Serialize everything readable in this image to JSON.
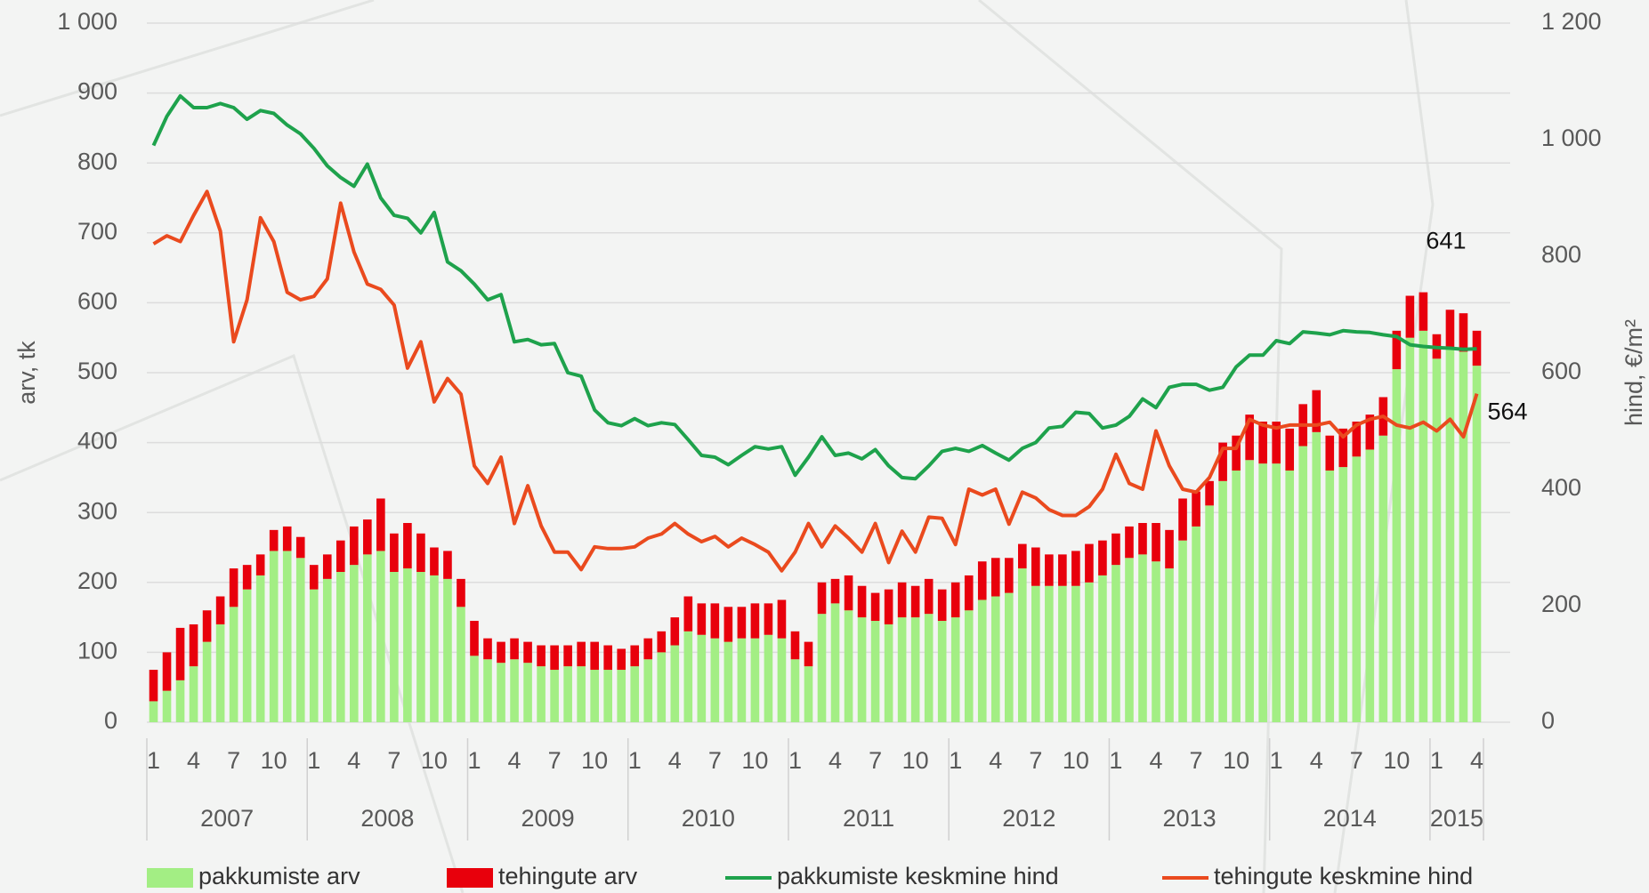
{
  "chart_data": {
    "type": "bar",
    "y_label": "arv, tk",
    "y2_label": "hind, €/m²",
    "categories": [
      "1",
      null,
      null,
      "4",
      null,
      null,
      "7",
      null,
      null,
      "10",
      null,
      null,
      "1",
      null,
      null,
      "4",
      null,
      null,
      "7",
      null,
      null,
      "10",
      null,
      null,
      "1",
      null,
      null,
      "4",
      null,
      null,
      "7",
      null,
      null,
      "10",
      null,
      null,
      "1",
      null,
      null,
      "4",
      null,
      null,
      "7",
      null,
      null,
      "10",
      null,
      null,
      "1",
      null,
      null,
      "4",
      null,
      null,
      "7",
      null,
      null,
      "10",
      null,
      null,
      "1",
      null,
      null,
      "4",
      null,
      null,
      "7",
      null,
      null,
      "10",
      null,
      null,
      "1",
      null,
      null,
      "4",
      null,
      null,
      "7",
      null,
      null,
      "10",
      null,
      null,
      "1",
      null,
      null,
      "4",
      null,
      null,
      "7",
      null,
      null,
      "10",
      null,
      null,
      "1",
      null,
      null,
      "4"
    ],
    "years": [
      "2007",
      "2008",
      "2009",
      "2010",
      "2011",
      "2012",
      "2013",
      "2014",
      "2015"
    ],
    "ylim": [
      0,
      1000
    ],
    "yticks": [
      0,
      100,
      200,
      300,
      400,
      500,
      600,
      700,
      800,
      900,
      {
        "value": 1000,
        "label": "1 000"
      }
    ],
    "y2lim": [
      0,
      1200
    ],
    "y2ticks": [
      0,
      200,
      400,
      600,
      800,
      {
        "value": 1000,
        "label": "1 000"
      },
      {
        "value": 1200,
        "label": "1 200"
      }
    ],
    "grid": true,
    "stacked": true,
    "legend": "bottom",
    "series": [
      {
        "name": "pakkumiste arv",
        "type": "bar",
        "color": "#a3ee84",
        "values": [
          30,
          45,
          60,
          80,
          115,
          140,
          165,
          190,
          210,
          245,
          245,
          235,
          190,
          205,
          215,
          225,
          240,
          245,
          215,
          220,
          215,
          210,
          205,
          165,
          95,
          90,
          85,
          90,
          85,
          80,
          75,
          80,
          80,
          75,
          75,
          75,
          80,
          90,
          100,
          110,
          130,
          125,
          120,
          115,
          120,
          120,
          125,
          120,
          90,
          80,
          155,
          170,
          160,
          150,
          145,
          140,
          150,
          150,
          155,
          145,
          150,
          160,
          175,
          180,
          185,
          220,
          195,
          195,
          195,
          195,
          200,
          210,
          225,
          235,
          240,
          230,
          220,
          260,
          280,
          310,
          345,
          360,
          375,
          370,
          370,
          360,
          395,
          415,
          360,
          365,
          380,
          390,
          410,
          505,
          550,
          560,
          520,
          535,
          530,
          510
        ]
      },
      {
        "name": "tehingute arv",
        "type": "bar",
        "color": "#e8000c",
        "values": [
          45,
          55,
          75,
          60,
          45,
          40,
          55,
          35,
          30,
          30,
          35,
          30,
          35,
          35,
          45,
          55,
          50,
          75,
          55,
          65,
          55,
          40,
          40,
          40,
          50,
          30,
          30,
          30,
          30,
          30,
          35,
          30,
          35,
          40,
          35,
          30,
          30,
          30,
          30,
          40,
          50,
          45,
          50,
          50,
          45,
          50,
          45,
          55,
          40,
          35,
          45,
          35,
          50,
          45,
          40,
          50,
          50,
          45,
          50,
          45,
          50,
          50,
          55,
          55,
          50,
          35,
          55,
          45,
          45,
          50,
          55,
          50,
          45,
          45,
          45,
          55,
          55,
          60,
          50,
          35,
          55,
          50,
          65,
          60,
          60,
          60,
          60,
          60,
          50,
          55,
          50,
          50,
          55,
          55,
          60,
          55,
          35,
          55,
          55,
          50
        ]
      },
      {
        "name": "pakkumiste keskmine hind",
        "type": "line",
        "axis": "y2",
        "color": "#1ea24c",
        "end_label": "641",
        "values": [
          990,
          1040,
          1075,
          1055,
          1055,
          1062,
          1055,
          1035,
          1050,
          1045,
          1025,
          1010,
          985,
          955,
          935,
          920,
          958,
          900,
          870,
          865,
          840,
          875,
          790,
          775,
          752,
          725,
          734,
          653,
          657,
          648,
          650,
          600,
          594,
          536,
          514,
          509,
          521,
          509,
          514,
          511,
          485,
          458,
          455,
          442,
          458,
          473,
          469,
          473,
          424,
          455,
          490,
          458,
          462,
          452,
          468,
          440,
          420,
          418,
          440,
          465,
          470,
          465,
          475,
          462,
          450,
          470,
          480,
          505,
          508,
          532,
          530,
          505,
          510,
          525,
          555,
          540,
          575,
          580,
          580,
          570,
          575,
          610,
          630,
          630,
          655,
          650,
          670,
          668,
          665,
          672,
          670,
          669,
          665,
          662,
          648,
          645,
          643,
          642,
          640,
          641
        ]
      },
      {
        "name": "tehingute keskmine hind",
        "type": "line",
        "axis": "y2",
        "color": "#ea4a1e",
        "end_label": "564",
        "values": [
          821,
          835,
          825,
          870,
          911,
          843,
          653,
          725,
          866,
          825,
          738,
          725,
          731,
          761,
          891,
          807,
          752,
          743,
          716,
          608,
          653,
          550,
          590,
          563,
          440,
          410,
          455,
          341,
          406,
          337,
          292,
          292,
          262,
          301,
          298,
          298,
          301,
          316,
          323,
          341,
          323,
          310,
          319,
          301,
          316,
          305,
          292,
          260,
          292,
          341,
          301,
          337,
          316,
          292,
          341,
          274,
          328,
          292,
          352,
          350,
          305,
          400,
          390,
          400,
          340,
          395,
          385,
          365,
          355,
          355,
          370,
          400,
          460,
          410,
          400,
          500,
          440,
          400,
          395,
          420,
          470,
          470,
          520,
          510,
          505,
          510,
          510,
          510,
          515,
          490,
          510,
          520,
          525,
          510,
          505,
          515,
          500,
          520,
          490,
          564
        ]
      }
    ]
  }
}
